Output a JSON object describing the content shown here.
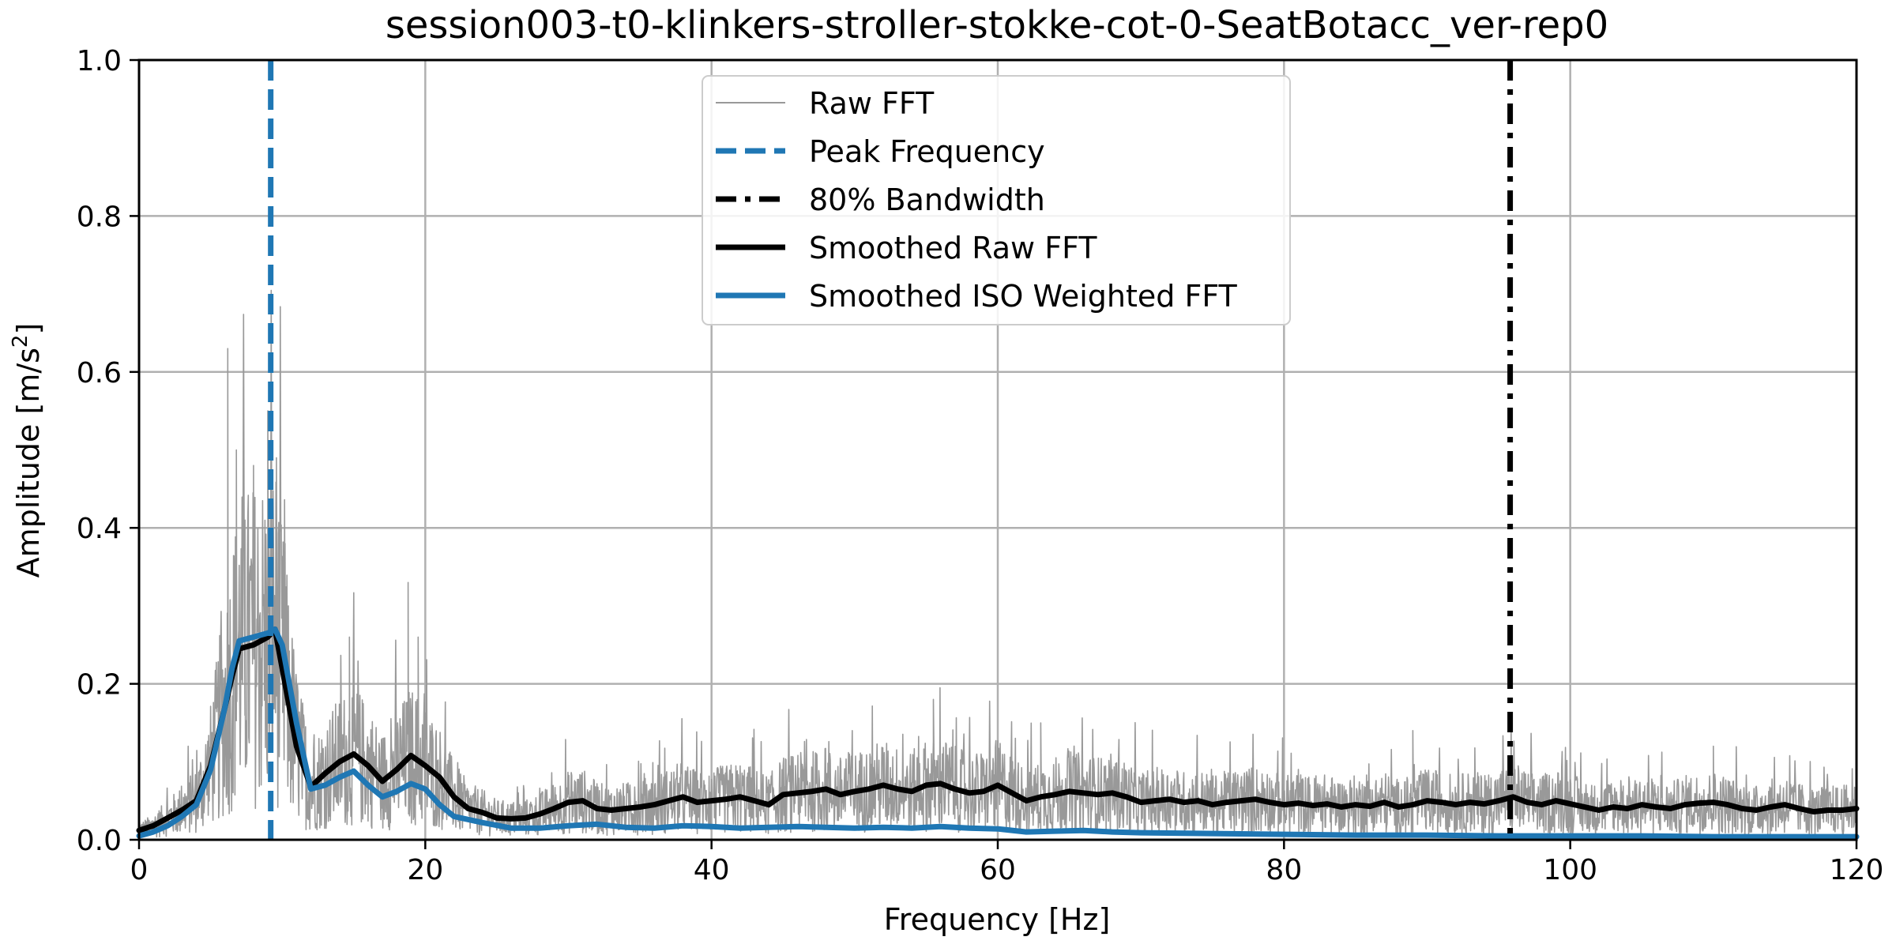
{
  "chart_data": {
    "type": "line",
    "title": "session003-t0-klinkers-stroller-stokke-cot-0-SeatBotacc_ver-rep0",
    "xlabel": "Frequency [Hz]",
    "ylabel_main": "Amplitude [m/s",
    "ylabel_sup": "2",
    "ylabel_end": "]",
    "xlim": [
      0,
      120
    ],
    "ylim": [
      0,
      1.0
    ],
    "xticks": [
      0,
      20,
      40,
      60,
      80,
      100,
      120
    ],
    "xtick_labels": [
      "0",
      "20",
      "40",
      "60",
      "80",
      "100",
      "120"
    ],
    "yticks": [
      0,
      0.2,
      0.4,
      0.6,
      0.8,
      1.0
    ],
    "ytick_labels": [
      "0.0",
      "0.2",
      "0.4",
      "0.6",
      "0.8",
      "1.0"
    ],
    "grid": true,
    "legend_location": "upper-center",
    "legend": [
      {
        "label": "Raw FFT",
        "style": "thin-gray"
      },
      {
        "label": "Peak Frequency",
        "style": "blue-dashed"
      },
      {
        "label": "80% Bandwidth",
        "style": "black-dashdot"
      },
      {
        "label": "Smoothed Raw FFT",
        "style": "black-thick"
      },
      {
        "label": "Smoothed ISO Weighted FFT",
        "style": "blue-thick"
      }
    ],
    "colors": {
      "raw": "#999999",
      "peak": "#1f77b4",
      "bandwidth": "#000000",
      "smoothed_raw": "#000000",
      "smoothed_iso": "#1f77b4"
    },
    "peak_frequency": 9.2,
    "bandwidth_80": 95.8,
    "raw_fft": {
      "note": "high-resolution noisy spectrum; notable spikes listed as [Hz, amplitude]",
      "spikes": [
        [
          6.2,
          0.63
        ],
        [
          6.8,
          0.5
        ],
        [
          7.4,
          0.41
        ],
        [
          8.0,
          0.48
        ],
        [
          9.0,
          0.55
        ],
        [
          9.6,
          0.49
        ],
        [
          10.2,
          0.38
        ],
        [
          14.7,
          0.26
        ],
        [
          18.8,
          0.33
        ],
        [
          19.5,
          0.26
        ],
        [
          55.5,
          0.18
        ],
        [
          63.0,
          0.15
        ],
        [
          89.0,
          0.14
        ],
        [
          110.0,
          0.12
        ]
      ]
    },
    "series": [
      {
        "name": "Smoothed Raw FFT",
        "x": [
          0,
          1,
          2,
          3,
          4,
          5,
          6,
          6.5,
          7,
          8,
          9,
          9.5,
          10,
          11,
          12,
          13,
          14,
          15,
          16,
          17,
          18,
          19,
          20,
          21,
          22,
          23,
          24,
          25,
          26,
          27,
          28,
          29,
          30,
          31,
          32,
          33,
          34,
          35,
          36,
          37,
          38,
          39,
          40,
          41,
          42,
          43,
          44,
          45,
          46,
          47,
          48,
          49,
          50,
          51,
          52,
          53,
          54,
          55,
          56,
          57,
          58,
          59,
          60,
          61,
          62,
          63,
          64,
          65,
          66,
          67,
          68,
          69,
          70,
          71,
          72,
          73,
          74,
          75,
          76,
          77,
          78,
          79,
          80,
          81,
          82,
          83,
          84,
          85,
          86,
          87,
          88,
          89,
          90,
          91,
          92,
          93,
          94,
          95,
          96,
          97,
          98,
          99,
          100,
          101,
          102,
          103,
          104,
          105,
          106,
          107,
          108,
          109,
          110,
          111,
          112,
          113,
          114,
          115,
          116,
          117,
          118,
          119,
          120
        ],
        "y": [
          0.012,
          0.018,
          0.028,
          0.038,
          0.05,
          0.095,
          0.17,
          0.21,
          0.245,
          0.25,
          0.26,
          0.27,
          0.22,
          0.12,
          0.068,
          0.085,
          0.1,
          0.11,
          0.095,
          0.075,
          0.09,
          0.108,
          0.095,
          0.08,
          0.055,
          0.04,
          0.035,
          0.028,
          0.027,
          0.028,
          0.033,
          0.04,
          0.048,
          0.05,
          0.04,
          0.038,
          0.04,
          0.042,
          0.045,
          0.05,
          0.055,
          0.048,
          0.05,
          0.052,
          0.055,
          0.05,
          0.045,
          0.058,
          0.06,
          0.062,
          0.065,
          0.058,
          0.062,
          0.065,
          0.07,
          0.065,
          0.062,
          0.07,
          0.072,
          0.065,
          0.06,
          0.062,
          0.07,
          0.06,
          0.05,
          0.055,
          0.058,
          0.062,
          0.06,
          0.058,
          0.06,
          0.055,
          0.048,
          0.05,
          0.052,
          0.048,
          0.05,
          0.045,
          0.048,
          0.05,
          0.052,
          0.048,
          0.045,
          0.047,
          0.044,
          0.046,
          0.042,
          0.045,
          0.043,
          0.048,
          0.042,
          0.045,
          0.05,
          0.048,
          0.045,
          0.048,
          0.046,
          0.05,
          0.055,
          0.048,
          0.045,
          0.05,
          0.046,
          0.042,
          0.038,
          0.042,
          0.04,
          0.045,
          0.042,
          0.04,
          0.045,
          0.047,
          0.048,
          0.045,
          0.04,
          0.038,
          0.042,
          0.045,
          0.04,
          0.036,
          0.038,
          0.038,
          0.04
        ]
      },
      {
        "name": "Smoothed ISO Weighted FFT",
        "x": [
          0,
          1,
          2,
          3,
          4,
          5,
          6,
          6.5,
          7,
          8,
          9,
          9.5,
          10,
          11,
          12,
          13,
          14,
          15,
          16,
          17,
          18,
          19,
          20,
          21,
          22,
          24,
          26,
          28,
          30,
          32,
          34,
          36,
          38,
          40,
          42,
          44,
          46,
          48,
          50,
          52,
          54,
          56,
          58,
          60,
          62,
          64,
          66,
          68,
          70,
          75,
          80,
          85,
          90,
          95,
          100,
          105,
          110,
          115,
          120
        ],
        "y": [
          0.005,
          0.01,
          0.018,
          0.03,
          0.045,
          0.09,
          0.17,
          0.22,
          0.255,
          0.26,
          0.265,
          0.27,
          0.25,
          0.15,
          0.065,
          0.07,
          0.08,
          0.088,
          0.07,
          0.055,
          0.062,
          0.072,
          0.065,
          0.045,
          0.03,
          0.022,
          0.015,
          0.015,
          0.018,
          0.02,
          0.016,
          0.015,
          0.018,
          0.017,
          0.015,
          0.016,
          0.017,
          0.016,
          0.015,
          0.016,
          0.015,
          0.017,
          0.015,
          0.014,
          0.01,
          0.011,
          0.012,
          0.01,
          0.009,
          0.008,
          0.007,
          0.006,
          0.006,
          0.005,
          0.005,
          0.005,
          0.004,
          0.004,
          0.004
        ]
      }
    ]
  }
}
